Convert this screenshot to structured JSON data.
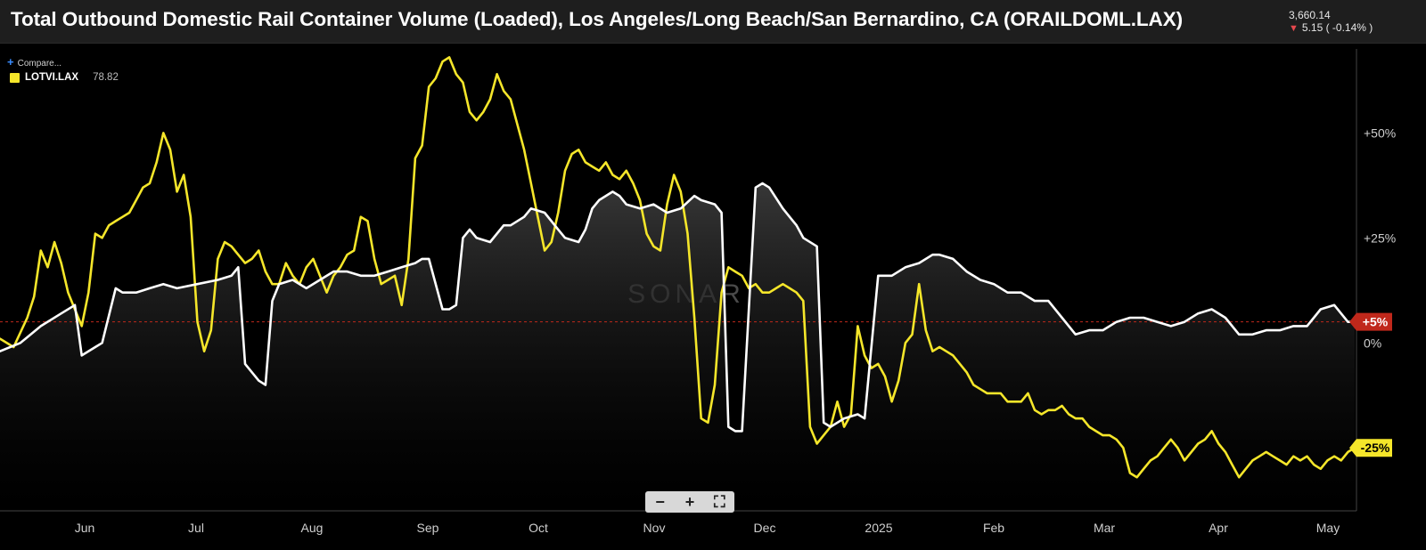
{
  "header": {
    "title": "Total Outbound Domestic Rail Container Volume (Loaded), Los Angeles/Long Beach/San Bernardino, CA (ORAILDOML.LAX)",
    "price": "3,660.14",
    "change": "5.15 ( -0.14% )"
  },
  "compare_label": "Compare...",
  "legend": {
    "ticker": "LOTVI.LAX",
    "value": "78.82"
  },
  "watermark": "SONAR",
  "zoom": {
    "minus": "−",
    "plus": "+",
    "fit": "⛶"
  },
  "colors": {
    "primary": "#ffffff",
    "secondary": "#f5e62a",
    "badge_red": "#c0281b",
    "badge_yellow": "#f5e62a",
    "bg": "#000000"
  },
  "chart_data": {
    "type": "line",
    "x_tick_labels": [
      "Jun",
      "Jul",
      "Aug",
      "Sep",
      "Oct",
      "Nov",
      "Dec",
      "2025",
      "Feb",
      "Mar",
      "Apr",
      "May"
    ],
    "y_tick_labels": [
      "+50%",
      "+25%",
      "0%"
    ],
    "ylim": [
      -40,
      70
    ],
    "reference_line": 5,
    "badges": [
      {
        "label": "+5%",
        "value": 5,
        "series": 0
      },
      {
        "label": "-25%",
        "value": -25,
        "series": 1
      }
    ],
    "series": [
      {
        "name": "ORAILDOML.LAX",
        "points": [
          [
            0,
            -2
          ],
          [
            3,
            0
          ],
          [
            6,
            4
          ],
          [
            9,
            7
          ],
          [
            11,
            9
          ],
          [
            12,
            -3
          ],
          [
            14,
            -1
          ],
          [
            15,
            0
          ],
          [
            17,
            13
          ],
          [
            18,
            12
          ],
          [
            20,
            12
          ],
          [
            22,
            13
          ],
          [
            24,
            14
          ],
          [
            26,
            13
          ],
          [
            29,
            14
          ],
          [
            32,
            15
          ],
          [
            34,
            16
          ],
          [
            35,
            18
          ],
          [
            36,
            -5
          ],
          [
            38,
            -9
          ],
          [
            39,
            -10
          ],
          [
            40,
            10
          ],
          [
            41,
            14
          ],
          [
            43,
            15
          ],
          [
            45,
            13
          ],
          [
            47,
            15
          ],
          [
            49,
            17
          ],
          [
            51,
            17
          ],
          [
            53,
            16
          ],
          [
            55,
            16
          ],
          [
            57,
            17
          ],
          [
            59,
            18
          ],
          [
            61,
            19
          ],
          [
            62,
            20
          ],
          [
            63,
            20
          ],
          [
            65,
            8
          ],
          [
            66,
            8
          ],
          [
            67,
            9
          ],
          [
            68,
            25
          ],
          [
            69,
            27
          ],
          [
            70,
            25
          ],
          [
            72,
            24
          ],
          [
            74,
            28
          ],
          [
            75,
            28
          ],
          [
            77,
            30
          ],
          [
            78,
            32
          ],
          [
            80,
            31
          ],
          [
            82,
            27
          ],
          [
            83,
            25
          ],
          [
            85,
            24
          ],
          [
            86,
            27
          ],
          [
            87,
            32
          ],
          [
            88,
            34
          ],
          [
            89,
            35
          ],
          [
            90,
            36
          ],
          [
            91,
            35
          ],
          [
            92,
            33
          ],
          [
            94,
            32
          ],
          [
            96,
            33
          ],
          [
            98,
            31
          ],
          [
            100,
            32
          ],
          [
            102,
            35
          ],
          [
            103,
            34
          ],
          [
            105,
            33
          ],
          [
            106,
            31
          ],
          [
            107,
            -20
          ],
          [
            108,
            -21
          ],
          [
            109,
            -21
          ],
          [
            111,
            37
          ],
          [
            112,
            38
          ],
          [
            113,
            37
          ],
          [
            115,
            32
          ],
          [
            117,
            28
          ],
          [
            118,
            25
          ],
          [
            120,
            23
          ],
          [
            121,
            -19
          ],
          [
            122,
            -20
          ],
          [
            124,
            -18
          ],
          [
            126,
            -17
          ],
          [
            127,
            -18
          ],
          [
            129,
            16
          ],
          [
            131,
            16
          ],
          [
            133,
            18
          ],
          [
            135,
            19
          ],
          [
            137,
            21
          ],
          [
            138,
            21
          ],
          [
            140,
            20
          ],
          [
            142,
            17
          ],
          [
            144,
            15
          ],
          [
            146,
            14
          ],
          [
            148,
            12
          ],
          [
            150,
            12
          ],
          [
            152,
            10
          ],
          [
            154,
            10
          ],
          [
            156,
            6
          ],
          [
            158,
            2
          ],
          [
            160,
            3
          ],
          [
            162,
            3
          ],
          [
            164,
            5
          ],
          [
            166,
            6
          ],
          [
            168,
            6
          ],
          [
            170,
            5
          ],
          [
            172,
            4
          ],
          [
            174,
            5
          ],
          [
            176,
            7
          ],
          [
            178,
            8
          ],
          [
            180,
            6
          ],
          [
            182,
            2
          ],
          [
            184,
            2
          ],
          [
            186,
            3
          ],
          [
            188,
            3
          ],
          [
            190,
            4
          ],
          [
            192,
            4
          ],
          [
            194,
            8
          ],
          [
            196,
            9
          ],
          [
            198,
            5
          ],
          [
            199,
            5
          ]
        ]
      },
      {
        "name": "LOTVI.LAX",
        "points": [
          [
            0,
            1
          ],
          [
            2,
            -1
          ],
          [
            4,
            6
          ],
          [
            5,
            11
          ],
          [
            6,
            22
          ],
          [
            7,
            18
          ],
          [
            8,
            24
          ],
          [
            9,
            19
          ],
          [
            10,
            12
          ],
          [
            11,
            8
          ],
          [
            12,
            4
          ],
          [
            13,
            12
          ],
          [
            14,
            26
          ],
          [
            15,
            25
          ],
          [
            16,
            28
          ],
          [
            17,
            29
          ],
          [
            18,
            30
          ],
          [
            19,
            31
          ],
          [
            20,
            34
          ],
          [
            21,
            37
          ],
          [
            22,
            38
          ],
          [
            23,
            43
          ],
          [
            24,
            50
          ],
          [
            25,
            46
          ],
          [
            26,
            36
          ],
          [
            27,
            40
          ],
          [
            28,
            30
          ],
          [
            29,
            5
          ],
          [
            30,
            -2
          ],
          [
            31,
            3
          ],
          [
            32,
            20
          ],
          [
            33,
            24
          ],
          [
            34,
            23
          ],
          [
            35,
            21
          ],
          [
            36,
            19
          ],
          [
            37,
            20
          ],
          [
            38,
            22
          ],
          [
            39,
            17
          ],
          [
            40,
            14
          ],
          [
            41,
            14
          ],
          [
            42,
            19
          ],
          [
            43,
            16
          ],
          [
            44,
            14
          ],
          [
            45,
            18
          ],
          [
            46,
            20
          ],
          [
            47,
            16
          ],
          [
            48,
            12
          ],
          [
            49,
            16
          ],
          [
            50,
            18
          ],
          [
            51,
            21
          ],
          [
            52,
            22
          ],
          [
            53,
            30
          ],
          [
            54,
            29
          ],
          [
            55,
            20
          ],
          [
            56,
            14
          ],
          [
            57,
            15
          ],
          [
            58,
            16
          ],
          [
            59,
            9
          ],
          [
            60,
            20
          ],
          [
            61,
            44
          ],
          [
            62,
            47
          ],
          [
            63,
            61
          ],
          [
            64,
            63
          ],
          [
            65,
            67
          ],
          [
            66,
            68
          ],
          [
            67,
            64
          ],
          [
            68,
            62
          ],
          [
            69,
            55
          ],
          [
            70,
            53
          ],
          [
            71,
            55
          ],
          [
            72,
            58
          ],
          [
            73,
            64
          ],
          [
            74,
            60
          ],
          [
            75,
            58
          ],
          [
            76,
            52
          ],
          [
            77,
            46
          ],
          [
            78,
            38
          ],
          [
            79,
            30
          ],
          [
            80,
            22
          ],
          [
            81,
            24
          ],
          [
            82,
            31
          ],
          [
            83,
            41
          ],
          [
            84,
            45
          ],
          [
            85,
            46
          ],
          [
            86,
            43
          ],
          [
            87,
            42
          ],
          [
            88,
            41
          ],
          [
            89,
            43
          ],
          [
            90,
            40
          ],
          [
            91,
            39
          ],
          [
            92,
            41
          ],
          [
            93,
            38
          ],
          [
            94,
            34
          ],
          [
            95,
            26
          ],
          [
            96,
            23
          ],
          [
            97,
            22
          ],
          [
            98,
            33
          ],
          [
            99,
            40
          ],
          [
            100,
            36
          ],
          [
            101,
            26
          ],
          [
            102,
            6
          ],
          [
            103,
            -18
          ],
          [
            104,
            -19
          ],
          [
            105,
            -10
          ],
          [
            106,
            12
          ],
          [
            107,
            18
          ],
          [
            108,
            17
          ],
          [
            109,
            16
          ],
          [
            110,
            13
          ],
          [
            111,
            14
          ],
          [
            112,
            12
          ],
          [
            113,
            12
          ],
          [
            114,
            13
          ],
          [
            115,
            14
          ],
          [
            116,
            13
          ],
          [
            117,
            12
          ],
          [
            118,
            10
          ],
          [
            119,
            -20
          ],
          [
            120,
            -24
          ],
          [
            121,
            -22
          ],
          [
            122,
            -20
          ],
          [
            123,
            -14
          ],
          [
            124,
            -20
          ],
          [
            125,
            -17
          ],
          [
            126,
            4
          ],
          [
            127,
            -3
          ],
          [
            128,
            -6
          ],
          [
            129,
            -5
          ],
          [
            130,
            -8
          ],
          [
            131,
            -14
          ],
          [
            132,
            -9
          ],
          [
            133,
            0
          ],
          [
            134,
            2
          ],
          [
            135,
            14
          ],
          [
            136,
            3
          ],
          [
            137,
            -2
          ],
          [
            138,
            -1
          ],
          [
            139,
            -2
          ],
          [
            140,
            -3
          ],
          [
            141,
            -5
          ],
          [
            142,
            -7
          ],
          [
            143,
            -10
          ],
          [
            144,
            -11
          ],
          [
            145,
            -12
          ],
          [
            146,
            -12
          ],
          [
            147,
            -12
          ],
          [
            148,
            -14
          ],
          [
            149,
            -14
          ],
          [
            150,
            -14
          ],
          [
            151,
            -12
          ],
          [
            152,
            -16
          ],
          [
            153,
            -17
          ],
          [
            154,
            -16
          ],
          [
            155,
            -16
          ],
          [
            156,
            -15
          ],
          [
            157,
            -17
          ],
          [
            158,
            -18
          ],
          [
            159,
            -18
          ],
          [
            160,
            -20
          ],
          [
            161,
            -21
          ],
          [
            162,
            -22
          ],
          [
            163,
            -22
          ],
          [
            164,
            -23
          ],
          [
            165,
            -25
          ],
          [
            166,
            -31
          ],
          [
            167,
            -32
          ],
          [
            168,
            -30
          ],
          [
            169,
            -28
          ],
          [
            170,
            -27
          ],
          [
            171,
            -25
          ],
          [
            172,
            -23
          ],
          [
            173,
            -25
          ],
          [
            174,
            -28
          ],
          [
            175,
            -26
          ],
          [
            176,
            -24
          ],
          [
            177,
            -23
          ],
          [
            178,
            -21
          ],
          [
            179,
            -24
          ],
          [
            180,
            -26
          ],
          [
            181,
            -29
          ],
          [
            182,
            -32
          ],
          [
            183,
            -30
          ],
          [
            184,
            -28
          ],
          [
            185,
            -27
          ],
          [
            186,
            -26
          ],
          [
            187,
            -27
          ],
          [
            188,
            -28
          ],
          [
            189,
            -29
          ],
          [
            190,
            -27
          ],
          [
            191,
            -28
          ],
          [
            192,
            -27
          ],
          [
            193,
            -29
          ],
          [
            194,
            -30
          ],
          [
            195,
            -28
          ],
          [
            196,
            -27
          ],
          [
            197,
            -28
          ],
          [
            198,
            -26
          ],
          [
            199,
            -25
          ]
        ]
      }
    ]
  }
}
